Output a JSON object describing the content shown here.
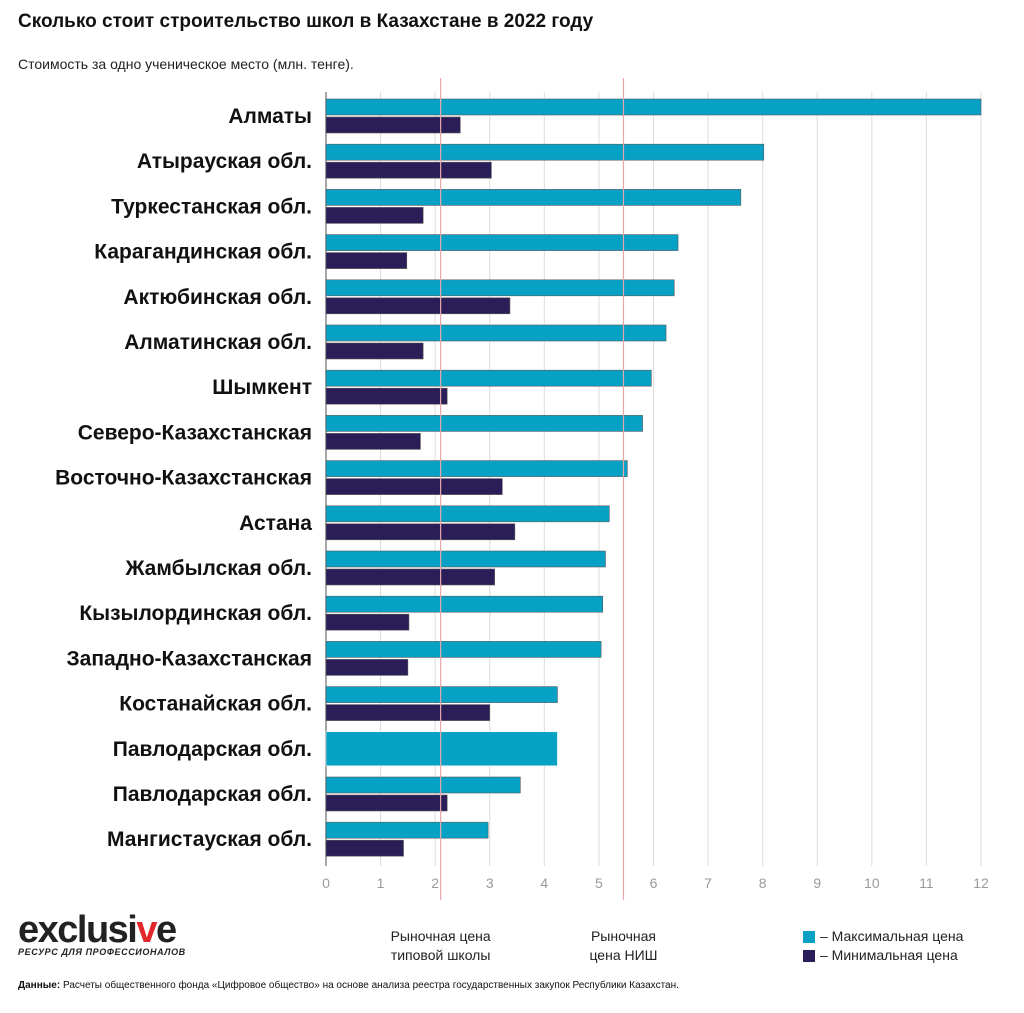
{
  "title": "Сколько стоит строительство школ в Казахстане в 2022 году",
  "subtitle": "Стоимость за одно ученическое место (млн. тенге).",
  "colors": {
    "max": "#06a1c4",
    "min": "#2b1d58",
    "reference": "#e8a6aa",
    "grid": "#dcdcdc"
  },
  "chart_data": {
    "type": "bar",
    "orientation": "horizontal",
    "title": "Сколько стоит строительство школ в Казахстане в 2022 году",
    "subtitle": "Стоимость за одно ученическое место (млн. тенге).",
    "xlim": [
      0,
      12
    ],
    "x_ticks": [
      0,
      1,
      2,
      3,
      4,
      5,
      6,
      7,
      8,
      9,
      10,
      11,
      12
    ],
    "grid": true,
    "categories": [
      "Алматы",
      "Атырауская обл.",
      "Туркестанская обл.",
      "Карагандинская обл.",
      "Актюбинская обл.",
      "Алматинская обл.",
      "Шымкент",
      "Северо-Казахстанская",
      "Восточно-Казахстанская",
      "Астана",
      "Жамбылская обл.",
      "Кызылординская обл.",
      "Западно-Казахстанская",
      "Костанайская обл.",
      "Павлодарская обл.",
      "Павлодарская обл.",
      "Мангистауская обл."
    ],
    "series": [
      {
        "name": "– Максимальная цена",
        "color": "#06a1c4",
        "values": [
          12.0,
          8.02,
          7.6,
          6.45,
          6.38,
          6.23,
          5.96,
          5.8,
          5.52,
          5.19,
          5.12,
          5.07,
          5.04,
          4.24,
          4.24,
          3.56,
          2.97
        ]
      },
      {
        "name": "– Минимальная цена",
        "color": "#2b1d58",
        "values": [
          2.46,
          3.03,
          1.78,
          1.48,
          3.37,
          1.78,
          2.22,
          1.73,
          3.23,
          3.46,
          3.09,
          1.52,
          1.5,
          3.0,
          null,
          2.22,
          1.42
        ]
      }
    ],
    "reference_lines": [
      {
        "value": 2.1,
        "label": [
          "Рыночная цена",
          "типовой школы"
        ]
      },
      {
        "value": 5.45,
        "label": [
          "Рыночная",
          "цена НИШ"
        ]
      }
    ],
    "legend_position": "bottom-right"
  },
  "logo": {
    "word_start": "exclusi",
    "word_v": "v",
    "word_end": "e",
    "tagline": "РЕСУРС ДЛЯ ПРОФЕССИОНАЛОВ"
  },
  "source": {
    "label": "Данные:",
    "text": "Расчеты общественного фонда «Цифровое общество» на основе анализа реестра государственных закупок Республики Казахстан."
  }
}
